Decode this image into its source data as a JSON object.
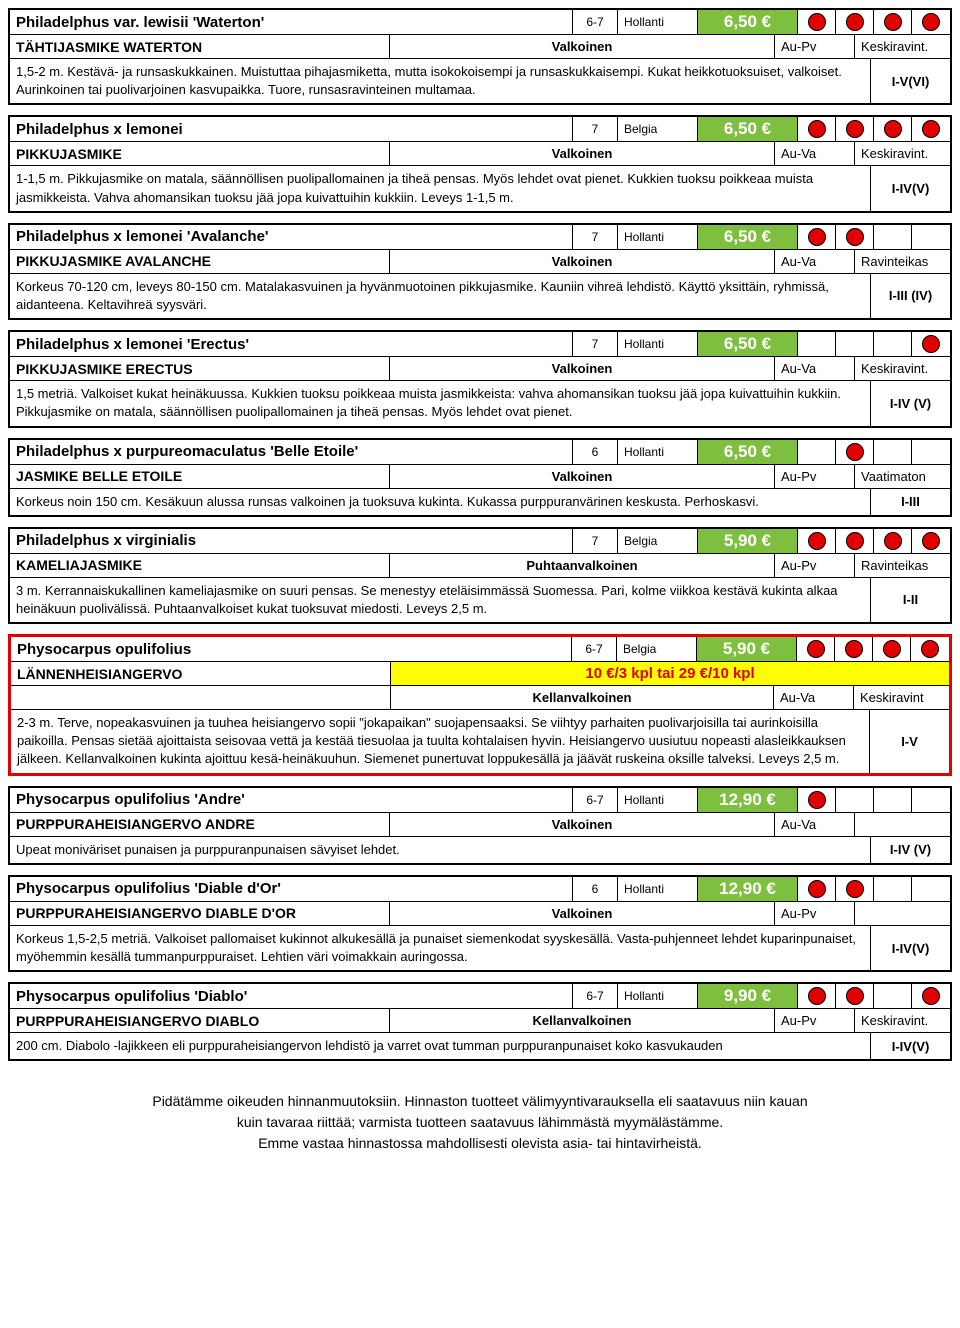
{
  "plants": [
    {
      "name": "Philadelphus var. lewisii 'Waterton'",
      "zone": "6-7",
      "origin": "Hollanti",
      "price": "6,50 €",
      "dots": [
        1,
        1,
        1,
        1
      ],
      "common": "TÄHTIJASMIKE WATERTON",
      "flower_color": "Valkoinen",
      "light": "Au-Pv",
      "soil": "Keskiravint.",
      "desc": "1,5-2 m. Kestävä- ja runsaskukkainen. Muistuttaa pihajasmiketta, mutta isokokoisempi ja runsaskukkaisempi. Kukat heikkotuoksuiset, valkoiset. Aurinkoinen tai puolivarjoinen kasvupaikka. Tuore, runsasravinteinen multamaa.",
      "hardiness": "I-V(VI)",
      "highlighted": false,
      "special_offer": ""
    },
    {
      "name": "Philadelphus x lemonei",
      "zone": "7",
      "origin": "Belgia",
      "price": "6,50 €",
      "dots": [
        1,
        1,
        1,
        1
      ],
      "common": "PIKKUJASMIKE",
      "flower_color": "Valkoinen",
      "light": "Au-Va",
      "soil": "Keskiravint.",
      "desc": "1-1,5 m. Pikkujasmike on matala, säännöllisen puolipallomainen ja tiheä pensas. Myös lehdet ovat pienet. Kukkien tuoksu poikkeaa muista jasmikkeista. Vahva ahomansikan tuoksu jää jopa kuivattuihin kukkiin. Leveys 1-1,5 m.",
      "hardiness": "I-IV(V)",
      "highlighted": false,
      "special_offer": ""
    },
    {
      "name": "Philadelphus x lemonei 'Avalanche'",
      "zone": "7",
      "origin": "Hollanti",
      "price": "6,50 €",
      "dots": [
        1,
        1,
        0,
        0
      ],
      "common": "PIKKUJASMIKE AVALANCHE",
      "flower_color": "Valkoinen",
      "light": "Au-Va",
      "soil": "Ravinteikas",
      "desc": "Korkeus 70-120 cm, leveys 80-150 cm. Matalakasvuinen ja hyvänmuotoinen pikkujasmike. Kauniin vihreä lehdistö. Käyttö yksittäin, ryhmissä, aidanteena. Keltavihreä syysväri.",
      "hardiness": "I-III (IV)",
      "highlighted": false,
      "special_offer": ""
    },
    {
      "name": "Philadelphus x lemonei 'Erectus'",
      "zone": "7",
      "origin": "Hollanti",
      "price": "6,50 €",
      "dots": [
        0,
        0,
        0,
        1
      ],
      "common": "PIKKUJASMIKE ERECTUS",
      "flower_color": "Valkoinen",
      "light": "Au-Va",
      "soil": "Keskiravint.",
      "desc": "1,5 metriä. Valkoiset kukat heinäkuussa. Kukkien tuoksu poikkeaa muista jasmikkeista: vahva ahomansikan tuoksu jää jopa kuivattuihin kukkiin. Pikkujasmike on matala, säännöllisen puolipallomainen ja tiheä pensas. Myös lehdet ovat pienet.",
      "hardiness": "I-IV (V)",
      "highlighted": false,
      "special_offer": ""
    },
    {
      "name": "Philadelphus x purpureomaculatus 'Belle Etoile'",
      "zone": "6",
      "origin": "Hollanti",
      "price": "6,50 €",
      "dots": [
        0,
        1,
        0,
        0
      ],
      "common": "JASMIKE BELLE ETOILE",
      "flower_color": "Valkoinen",
      "light": "Au-Pv",
      "soil": "Vaatimaton",
      "desc": "Korkeus noin 150 cm. Kesäkuun alussa runsas valkoinen ja tuoksuva kukinta. Kukassa purppuranvärinen keskusta. Perhoskasvi.",
      "hardiness": "I-III",
      "highlighted": false,
      "special_offer": ""
    },
    {
      "name": "Philadelphus x virginialis",
      "zone": "7",
      "origin": "Belgia",
      "price": "5,90 €",
      "dots": [
        1,
        1,
        1,
        1
      ],
      "common": "KAMELIAJASMIKE",
      "flower_color": "Puhtaanvalkoinen",
      "light": "Au-Pv",
      "soil": "Ravinteikas",
      "desc": "3 m. Kerrannaiskukallinen kameliajasmike on suuri pensas. Se menestyy eteläisimmässä Suomessa. Pari, kolme viikkoa kestävä kukinta alkaa heinäkuun puolivälissä. Puhtaanvalkoiset kukat tuoksuvat miedosti. Leveys 2,5 m.",
      "hardiness": "I-II",
      "highlighted": false,
      "special_offer": ""
    },
    {
      "name": "Physocarpus opulifolius",
      "zone": "6-7",
      "origin": "Belgia",
      "price": "5,90 €",
      "dots": [
        1,
        1,
        1,
        1
      ],
      "common": "LÄNNENHEISIANGERVO",
      "flower_color": "Kellanvalkoinen",
      "light": "Au-Va",
      "soil": "Keskiravint",
      "desc": "2-3 m. Terve, nopeakasvuinen ja tuuhea heisiangervo sopii \"jokapaikan\" suojapensaaksi. Se viihtyy parhaiten puolivarjoisilla tai aurinkoisilla paikoilla. Pensas sietää ajoittaista seisovaa vettä ja kestää tiesuolaa ja tuulta kohtalaisen hyvin. Heisiangervo uusiutuu nopeasti alasleikkauksen jälkeen. Kellanvalkoinen kukinta ajoittuu kesä-heinäkuuhun. Siemenet punertuvat loppukesällä ja jäävät ruskeina oksille talveksi. Leveys 2,5 m.",
      "hardiness": "I-V",
      "highlighted": true,
      "special_offer": "10 €/3 kpl tai 29 €/10 kpl"
    },
    {
      "name": "Physocarpus opulifolius 'Andre'",
      "zone": "6-7",
      "origin": "Hollanti",
      "price": "12,90 €",
      "dots": [
        1,
        0,
        0,
        0
      ],
      "common": "PURPPURAHEISIANGERVO ANDRE",
      "flower_color": "Valkoinen",
      "light": "Au-Va",
      "soil": "",
      "desc": "Upeat moniväriset punaisen ja purppuranpunaisen sävyiset lehdet.",
      "hardiness": "I-IV (V)",
      "highlighted": false,
      "special_offer": ""
    },
    {
      "name": "Physocarpus opulifolius 'Diable d'Or'",
      "zone": "6",
      "origin": "Hollanti",
      "price": "12,90 €",
      "dots": [
        1,
        1,
        0,
        0
      ],
      "common": "PURPPURAHEISIANGERVO DIABLE D'OR",
      "flower_color": "Valkoinen",
      "light": "Au-Pv",
      "soil": "",
      "desc": "Korkeus 1,5-2,5 metriä. Valkoiset pallomaiset kukinnot alkukesällä ja punaiset siemenkodat syyskesällä. Vasta-puhjenneet lehdet kuparinpunaiset, myöhemmin kesällä tummanpurppuraiset. Lehtien väri voimakkain auringossa.",
      "hardiness": "I-IV(V)",
      "highlighted": false,
      "special_offer": ""
    },
    {
      "name": "Physocarpus opulifolius 'Diablo'",
      "zone": "6-7",
      "origin": "Hollanti",
      "price": "9,90 €",
      "dots": [
        1,
        1,
        0,
        1
      ],
      "common": "PURPPURAHEISIANGERVO DIABLO",
      "flower_color": "Kellanvalkoinen",
      "light": "Au-Pv",
      "soil": "Keskiravint.",
      "desc": "200 cm. Diabolo -lajikkeen eli purppuraheisiangervon lehdistö ja varret ovat tumman purppuranpunaiset koko kasvukauden",
      "hardiness": "I-IV(V)",
      "highlighted": false,
      "special_offer": ""
    }
  ],
  "footer": {
    "line1": "Pidätämme oikeuden hinnanmuutoksiin. Hinnaston tuotteet välimyyntivarauksella eli saatavuus niin kauan",
    "line2": "kuin tavaraa riittää; varmista tuotteen saatavuus lähimmästä myymälästämme.",
    "line3": "Emme vastaa hinnastossa mahdollisesti olevista asia- tai hintavirheistä."
  }
}
